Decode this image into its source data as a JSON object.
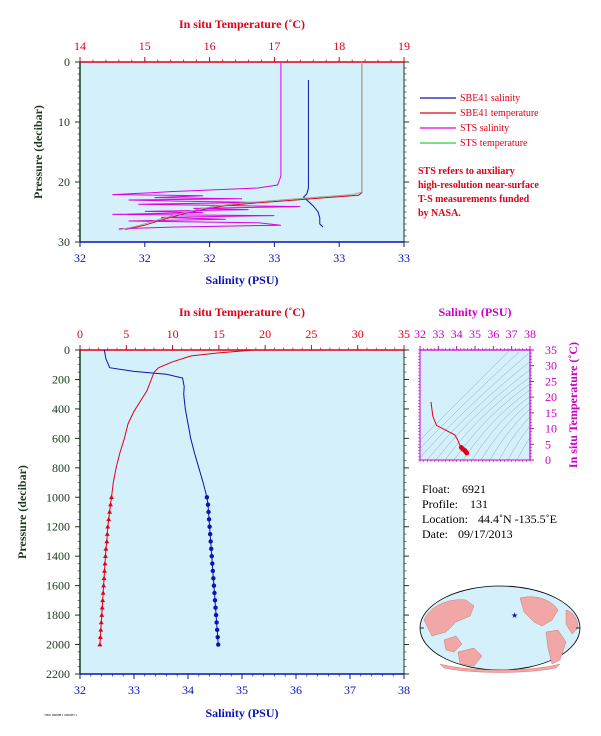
{
  "colors": {
    "plot_bg": "#d4f0fa",
    "temperature": "#e0001a",
    "salinity": "#0a14b4",
    "sts_salinity": "#e000e0",
    "sts_temperature": "#9aa890",
    "ts_axis": "#c800c8",
    "pressure_axis": "#1a3a1a",
    "legend_green": "#33cc33",
    "legend_red": "#e0001a",
    "legend_magenta": "#e000e0"
  },
  "top_panel": {
    "top_axis_title": "In situ Temperature (˚C)",
    "bottom_axis_title": "Salinity (PSU)",
    "left_axis_title": "Pressure (decibar)",
    "temp_ticks": [
      "14",
      "15",
      "16",
      "17",
      "18",
      "19"
    ],
    "sal_ticks": [
      "32",
      "32",
      "32",
      "33",
      "33",
      "33"
    ],
    "pres_ticks": [
      "0",
      "10",
      "20",
      "30"
    ]
  },
  "legend": {
    "items": [
      {
        "label": "SBE41 salinity",
        "color": "#0a14b4"
      },
      {
        "label": "SBE41 temperature",
        "color": "#e0001a"
      },
      {
        "label": "STS salinity",
        "color": "#e000e0"
      },
      {
        "label": "STS temperature",
        "color": "#33cc33"
      }
    ],
    "note": [
      "STS refers to auxiliary",
      "high-resolution near-surface",
      "T-S measurements funded",
      "by NASA."
    ]
  },
  "bottom_panel": {
    "top_axis_title": "In situ Temperature (˚C)",
    "bottom_axis_title": "Salinity (PSU)",
    "left_axis_title": "Pressure (decibar)",
    "temp_ticks": [
      "0",
      "5",
      "10",
      "15",
      "20",
      "25",
      "30",
      "35"
    ],
    "sal_ticks": [
      "32",
      "33",
      "34",
      "35",
      "36",
      "37",
      "38"
    ],
    "pres_ticks": [
      "0",
      "200",
      "400",
      "600",
      "800",
      "1000",
      "1200",
      "1400",
      "1600",
      "1800",
      "2000",
      "2200"
    ]
  },
  "ts_panel": {
    "top_axis_title": "Salinity (PSU)",
    "right_axis_title": "In situ Temperature (˚C)",
    "sal_ticks": [
      "32",
      "33",
      "34",
      "35",
      "36",
      "37",
      "38"
    ],
    "temp_ticks": [
      "0",
      "5",
      "10",
      "15",
      "20",
      "25",
      "30",
      "35"
    ]
  },
  "info": {
    "float_label": "Float:",
    "float_value": "6921",
    "profile_label": "Profile:",
    "profile_value": "131",
    "location_label": "Location:",
    "location_value": "44.4˚N  -135.5˚E",
    "date_label": "Date:",
    "date_value": "09/17/2013"
  },
  "footer_tiny": "7900 0600H1 2000H71",
  "chart_data": [
    {
      "type": "line",
      "panel": "top",
      "title": "",
      "xlabel": "Salinity (PSU)",
      "x2label": "In situ Temperature (˚C)",
      "ylabel": "Pressure (decibar)",
      "xlim": [
        32.0,
        33.0
      ],
      "x2lim": [
        14,
        19
      ],
      "ylim": [
        30,
        0
      ],
      "series": [
        {
          "name": "SBE41 salinity",
          "axis": "salinity",
          "points": [
            [
              32.705,
              3
            ],
            [
              32.705,
              10
            ],
            [
              32.705,
              21
            ],
            [
              32.7,
              22
            ],
            [
              32.69,
              22.5
            ],
            [
              32.7,
              23
            ],
            [
              32.72,
              24
            ],
            [
              32.735,
              25
            ],
            [
              32.74,
              26
            ],
            [
              32.74,
              27
            ],
            [
              32.75,
              27.5
            ]
          ]
        },
        {
          "name": "SBE41 temperature",
          "axis": "temperature",
          "points": [
            [
              18.35,
              0
            ],
            [
              18.35,
              10
            ],
            [
              18.35,
              21.8
            ],
            [
              18.3,
              22.2
            ],
            [
              17.8,
              22.6
            ],
            [
              17.2,
              23.1
            ],
            [
              16.6,
              23.6
            ],
            [
              16.2,
              24
            ],
            [
              15.9,
              24.6
            ],
            [
              15.6,
              25.3
            ],
            [
              15.3,
              26.2
            ],
            [
              15.0,
              27.2
            ],
            [
              14.7,
              27.9
            ]
          ]
        },
        {
          "name": "STS salinity",
          "axis": "salinity",
          "points": [
            [
              32.62,
              0
            ],
            [
              32.62,
              5
            ],
            [
              32.62,
              12
            ],
            [
              32.62,
              19
            ],
            [
              32.61,
              20.5
            ],
            [
              32.55,
              21
            ],
            [
              32.42,
              21.3
            ],
            [
              32.28,
              21.6
            ],
            [
              32.22,
              21.8
            ],
            [
              32.1,
              22.1
            ],
            [
              32.38,
              22.3
            ],
            [
              32.23,
              22.6
            ],
            [
              32.5,
              22.8
            ],
            [
              32.15,
              23.0
            ],
            [
              32.32,
              23.2
            ],
            [
              32.55,
              23.4
            ],
            [
              32.18,
              23.7
            ],
            [
              32.42,
              23.9
            ],
            [
              32.68,
              24.1
            ],
            [
              32.35,
              24.4
            ],
            [
              32.52,
              24.6
            ],
            [
              32.2,
              24.9
            ],
            [
              32.38,
              25.1
            ],
            [
              32.1,
              25.4
            ],
            [
              32.6,
              25.6
            ],
            [
              32.25,
              25.9
            ],
            [
              32.45,
              26.2
            ],
            [
              32.15,
              26.5
            ],
            [
              32.55,
              26.8
            ],
            [
              32.62,
              27.2
            ],
            [
              32.3,
              27.5
            ],
            [
              32.12,
              27.8
            ]
          ]
        },
        {
          "name": "STS temperature",
          "axis": "temperature",
          "points": [
            [
              18.35,
              0
            ],
            [
              18.35,
              10
            ],
            [
              18.35,
              21.7
            ],
            [
              18.2,
              22.1
            ],
            [
              17.7,
              22.5
            ],
            [
              17.1,
              23.0
            ],
            [
              16.5,
              23.5
            ],
            [
              16.1,
              24.0
            ],
            [
              15.8,
              24.6
            ],
            [
              15.5,
              25.4
            ],
            [
              15.2,
              26.3
            ],
            [
              14.9,
              27.3
            ],
            [
              14.6,
              28.0
            ]
          ]
        }
      ]
    },
    {
      "type": "line",
      "panel": "bottom",
      "title": "",
      "xlabel": "Salinity (PSU)",
      "x2label": "In situ Temperature (˚C)",
      "ylabel": "Pressure (decibar)",
      "xlim": [
        32,
        38
      ],
      "x2lim": [
        0,
        35
      ],
      "ylim": [
        2200,
        0
      ],
      "series": [
        {
          "name": "",
          "axis": "salinity",
          "color": "salinity",
          "points": [
            [
              32.45,
              0
            ],
            [
              32.48,
              60
            ],
            [
              32.55,
              120
            ],
            [
              33.0,
              145
            ],
            [
              33.6,
              165
            ],
            [
              33.9,
              190
            ],
            [
              33.93,
              250
            ],
            [
              33.92,
              300
            ],
            [
              33.95,
              400
            ],
            [
              34.0,
              500
            ],
            [
              34.05,
              600
            ],
            [
              34.12,
              700
            ],
            [
              34.2,
              800
            ],
            [
              34.28,
              900
            ],
            [
              34.35,
              1000
            ]
          ]
        },
        {
          "name": "",
          "axis": "temperature",
          "color": "temperature",
          "points": [
            [
              18.8,
              0
            ],
            [
              15.0,
              20
            ],
            [
              12.0,
              40
            ],
            [
              10.0,
              80
            ],
            [
              8.5,
              120
            ],
            [
              8.0,
              150
            ],
            [
              7.7,
              200
            ],
            [
              7.2,
              280
            ],
            [
              6.5,
              350
            ],
            [
              5.8,
              420
            ],
            [
              5.2,
              500
            ],
            [
              4.8,
              600
            ],
            [
              4.3,
              700
            ],
            [
              3.9,
              800
            ],
            [
              3.6,
              900
            ],
            [
              3.4,
              1000
            ]
          ]
        },
        {
          "name": "",
          "axis": "salinity",
          "color": "salinity",
          "marker": "circle",
          "points": [
            [
              34.35,
              1000
            ],
            [
              34.37,
              1050
            ],
            [
              34.38,
              1100
            ],
            [
              34.39,
              1150
            ],
            [
              34.4,
              1200
            ],
            [
              34.41,
              1250
            ],
            [
              34.42,
              1300
            ],
            [
              34.43,
              1350
            ],
            [
              34.44,
              1400
            ],
            [
              34.45,
              1450
            ],
            [
              34.46,
              1500
            ],
            [
              34.47,
              1550
            ],
            [
              34.48,
              1600
            ],
            [
              34.49,
              1650
            ],
            [
              34.5,
              1700
            ],
            [
              34.51,
              1750
            ],
            [
              34.52,
              1800
            ],
            [
              34.53,
              1850
            ],
            [
              34.54,
              1900
            ],
            [
              34.55,
              1950
            ],
            [
              34.56,
              2000
            ]
          ]
        },
        {
          "name": "",
          "axis": "temperature",
          "color": "temperature",
          "marker": "triangle",
          "points": [
            [
              3.4,
              1000
            ],
            [
              3.3,
              1050
            ],
            [
              3.2,
              1100
            ],
            [
              3.1,
              1150
            ],
            [
              3.0,
              1200
            ],
            [
              2.95,
              1250
            ],
            [
              2.9,
              1300
            ],
            [
              2.8,
              1350
            ],
            [
              2.75,
              1400
            ],
            [
              2.7,
              1450
            ],
            [
              2.65,
              1500
            ],
            [
              2.6,
              1550
            ],
            [
              2.55,
              1600
            ],
            [
              2.5,
              1650
            ],
            [
              2.45,
              1700
            ],
            [
              2.4,
              1750
            ],
            [
              2.35,
              1800
            ],
            [
              2.3,
              1850
            ],
            [
              2.25,
              1900
            ],
            [
              2.2,
              1950
            ],
            [
              2.15,
              2000
            ]
          ]
        }
      ]
    },
    {
      "type": "scatter",
      "panel": "ts",
      "title": "",
      "xlabel": "Salinity (PSU)",
      "ylabel": "In situ Temperature (˚C)",
      "xlim": [
        32,
        38
      ],
      "ylim": [
        0,
        35
      ],
      "series": [
        {
          "name": "",
          "points": [
            [
              32.6,
              18.5
            ],
            [
              32.7,
              14
            ],
            [
              32.9,
              11
            ],
            [
              33.3,
              9.8
            ],
            [
              33.9,
              8.0
            ],
            [
              34.05,
              6.5
            ],
            [
              34.15,
              5
            ],
            [
              34.25,
              4
            ],
            [
              34.35,
              3.4
            ],
            [
              34.45,
              3.0
            ],
            [
              34.5,
              2.6
            ],
            [
              34.55,
              2.2
            ]
          ]
        }
      ]
    }
  ]
}
